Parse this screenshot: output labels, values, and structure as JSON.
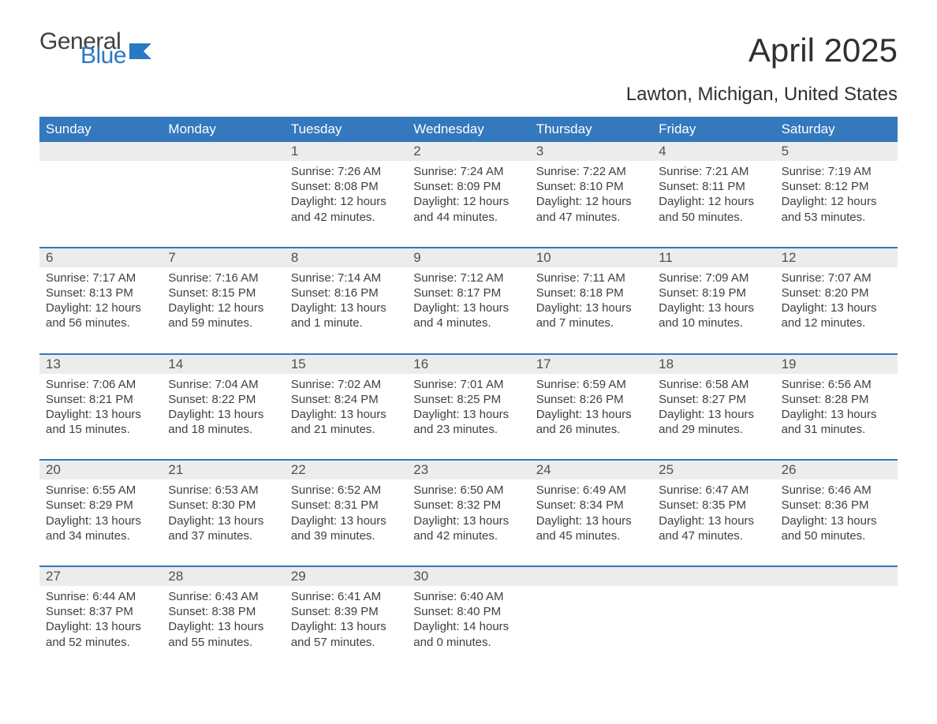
{
  "logo": {
    "word1": "General",
    "word2": "Blue",
    "color_gray": "#404040",
    "color_blue": "#2b78c4"
  },
  "title": "April 2025",
  "location": "Lawton, Michigan, United States",
  "colors": {
    "header_bg": "#3478bd",
    "header_fg": "#ffffff",
    "daynum_bg": "#ececec",
    "week_border": "#3478bd",
    "text": "#404040",
    "background": "#ffffff"
  },
  "typography": {
    "title_fontsize": 42,
    "location_fontsize": 24,
    "header_fontsize": 17,
    "body_fontsize": 15,
    "logo_fontsize": 30
  },
  "layout": {
    "columns": 7,
    "rows": 5
  },
  "day_headers": [
    "Sunday",
    "Monday",
    "Tuesday",
    "Wednesday",
    "Thursday",
    "Friday",
    "Saturday"
  ],
  "labels": {
    "sunrise": "Sunrise:",
    "sunset": "Sunset:",
    "daylight": "Daylight:"
  },
  "weeks": [
    [
      null,
      null,
      {
        "n": "1",
        "sunrise": "7:26 AM",
        "sunset": "8:08 PM",
        "daylight": "12 hours and 42 minutes."
      },
      {
        "n": "2",
        "sunrise": "7:24 AM",
        "sunset": "8:09 PM",
        "daylight": "12 hours and 44 minutes."
      },
      {
        "n": "3",
        "sunrise": "7:22 AM",
        "sunset": "8:10 PM",
        "daylight": "12 hours and 47 minutes."
      },
      {
        "n": "4",
        "sunrise": "7:21 AM",
        "sunset": "8:11 PM",
        "daylight": "12 hours and 50 minutes."
      },
      {
        "n": "5",
        "sunrise": "7:19 AM",
        "sunset": "8:12 PM",
        "daylight": "12 hours and 53 minutes."
      }
    ],
    [
      {
        "n": "6",
        "sunrise": "7:17 AM",
        "sunset": "8:13 PM",
        "daylight": "12 hours and 56 minutes."
      },
      {
        "n": "7",
        "sunrise": "7:16 AM",
        "sunset": "8:15 PM",
        "daylight": "12 hours and 59 minutes."
      },
      {
        "n": "8",
        "sunrise": "7:14 AM",
        "sunset": "8:16 PM",
        "daylight": "13 hours and 1 minute."
      },
      {
        "n": "9",
        "sunrise": "7:12 AM",
        "sunset": "8:17 PM",
        "daylight": "13 hours and 4 minutes."
      },
      {
        "n": "10",
        "sunrise": "7:11 AM",
        "sunset": "8:18 PM",
        "daylight": "13 hours and 7 minutes."
      },
      {
        "n": "11",
        "sunrise": "7:09 AM",
        "sunset": "8:19 PM",
        "daylight": "13 hours and 10 minutes."
      },
      {
        "n": "12",
        "sunrise": "7:07 AM",
        "sunset": "8:20 PM",
        "daylight": "13 hours and 12 minutes."
      }
    ],
    [
      {
        "n": "13",
        "sunrise": "7:06 AM",
        "sunset": "8:21 PM",
        "daylight": "13 hours and 15 minutes."
      },
      {
        "n": "14",
        "sunrise": "7:04 AM",
        "sunset": "8:22 PM",
        "daylight": "13 hours and 18 minutes."
      },
      {
        "n": "15",
        "sunrise": "7:02 AM",
        "sunset": "8:24 PM",
        "daylight": "13 hours and 21 minutes."
      },
      {
        "n": "16",
        "sunrise": "7:01 AM",
        "sunset": "8:25 PM",
        "daylight": "13 hours and 23 minutes."
      },
      {
        "n": "17",
        "sunrise": "6:59 AM",
        "sunset": "8:26 PM",
        "daylight": "13 hours and 26 minutes."
      },
      {
        "n": "18",
        "sunrise": "6:58 AM",
        "sunset": "8:27 PM",
        "daylight": "13 hours and 29 minutes."
      },
      {
        "n": "19",
        "sunrise": "6:56 AM",
        "sunset": "8:28 PM",
        "daylight": "13 hours and 31 minutes."
      }
    ],
    [
      {
        "n": "20",
        "sunrise": "6:55 AM",
        "sunset": "8:29 PM",
        "daylight": "13 hours and 34 minutes."
      },
      {
        "n": "21",
        "sunrise": "6:53 AM",
        "sunset": "8:30 PM",
        "daylight": "13 hours and 37 minutes."
      },
      {
        "n": "22",
        "sunrise": "6:52 AM",
        "sunset": "8:31 PM",
        "daylight": "13 hours and 39 minutes."
      },
      {
        "n": "23",
        "sunrise": "6:50 AM",
        "sunset": "8:32 PM",
        "daylight": "13 hours and 42 minutes."
      },
      {
        "n": "24",
        "sunrise": "6:49 AM",
        "sunset": "8:34 PM",
        "daylight": "13 hours and 45 minutes."
      },
      {
        "n": "25",
        "sunrise": "6:47 AM",
        "sunset": "8:35 PM",
        "daylight": "13 hours and 47 minutes."
      },
      {
        "n": "26",
        "sunrise": "6:46 AM",
        "sunset": "8:36 PM",
        "daylight": "13 hours and 50 minutes."
      }
    ],
    [
      {
        "n": "27",
        "sunrise": "6:44 AM",
        "sunset": "8:37 PM",
        "daylight": "13 hours and 52 minutes."
      },
      {
        "n": "28",
        "sunrise": "6:43 AM",
        "sunset": "8:38 PM",
        "daylight": "13 hours and 55 minutes."
      },
      {
        "n": "29",
        "sunrise": "6:41 AM",
        "sunset": "8:39 PM",
        "daylight": "13 hours and 57 minutes."
      },
      {
        "n": "30",
        "sunrise": "6:40 AM",
        "sunset": "8:40 PM",
        "daylight": "14 hours and 0 minutes."
      },
      null,
      null,
      null
    ]
  ]
}
